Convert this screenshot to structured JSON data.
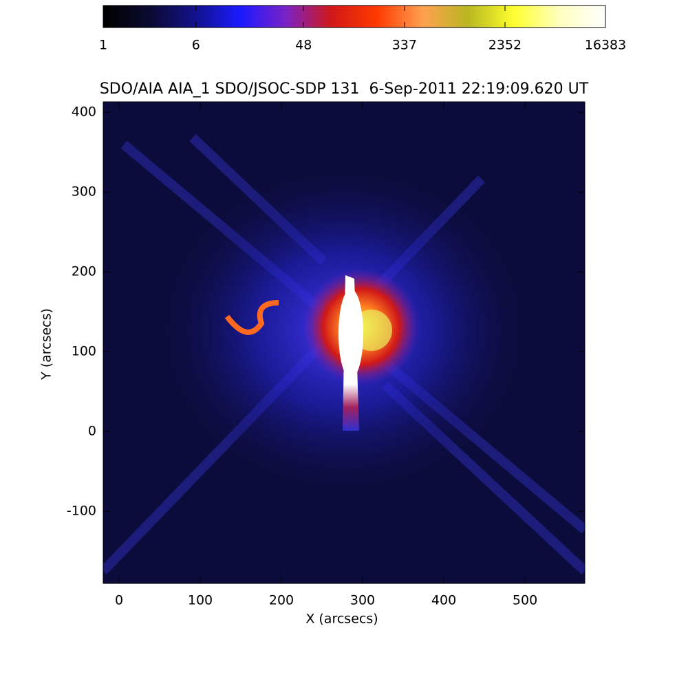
{
  "chart_data": {
    "type": "image",
    "title": "SDO/AIA AIA_1 SDO/JSOC-SDP 131  6-Sep-2011 22:19:09.620 UT",
    "x_label": "X (arcsecs)",
    "y_label": "Y (arcsecs)",
    "xlim": [
      -19.5,
      573.7
    ],
    "ylim": [
      -190.5,
      413
    ],
    "xticks": [
      0,
      100,
      200,
      300,
      400,
      500
    ],
    "yticks": [
      -100,
      0,
      100,
      200,
      300,
      400
    ],
    "colorbar": {
      "clim": [
        1,
        16383
      ],
      "ticks": [
        1,
        6,
        48,
        337,
        2352,
        16383
      ],
      "log_scale": true,
      "colormap": [
        "#000000",
        "#0a0a30",
        "#12128a",
        "#1a1aff",
        "#7a22c8",
        "#d01818",
        "#ff3a00",
        "#ffa050",
        "#b8b820",
        "#ffff30",
        "#ffffc0",
        "#ffffff"
      ]
    }
  }
}
